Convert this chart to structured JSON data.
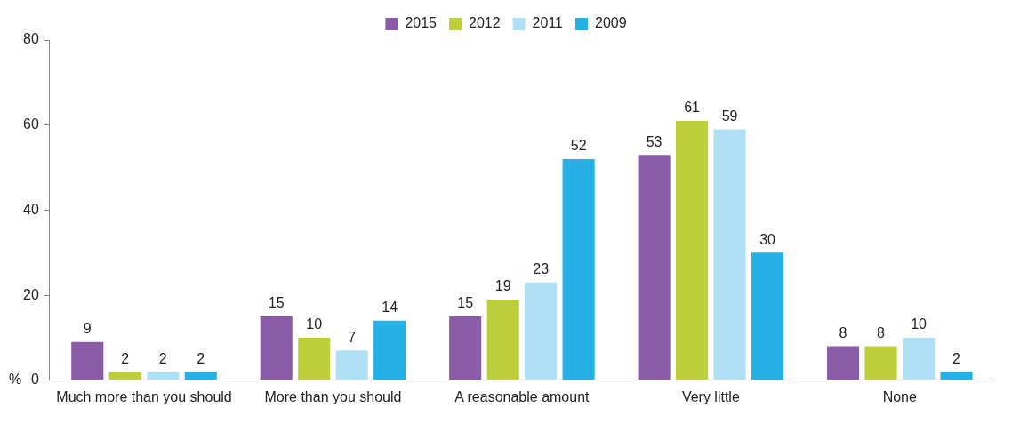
{
  "chart_data": {
    "type": "bar",
    "ylabel": "%",
    "categories": [
      "Much more than you should",
      "More than you should",
      "A reasonable amount",
      "Very little",
      "None"
    ],
    "series": [
      {
        "name": "2015",
        "color": "#8a5ca8",
        "values": [
          9,
          15,
          15,
          53,
          8
        ]
      },
      {
        "name": "2012",
        "color": "#bccf3a",
        "values": [
          2,
          10,
          19,
          61,
          8
        ]
      },
      {
        "name": "2011",
        "color": "#b0e0f5",
        "values": [
          2,
          7,
          23,
          59,
          10
        ]
      },
      {
        "name": "2009",
        "color": "#25b0e6",
        "values": [
          2,
          14,
          52,
          30,
          2
        ]
      }
    ],
    "ylim": [
      0,
      80
    ],
    "yticks": [
      0,
      20,
      40,
      60,
      80
    ],
    "grid": false,
    "legend": "top",
    "data_labels": true
  }
}
